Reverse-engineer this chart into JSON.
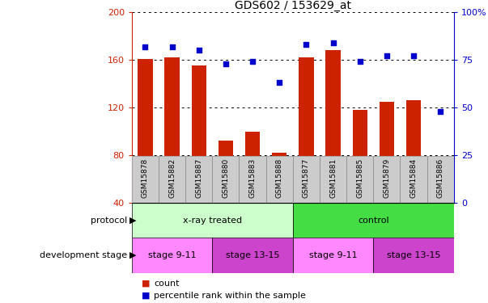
{
  "title": "GDS602 / 153629_at",
  "samples": [
    "GSM15878",
    "GSM15882",
    "GSM15887",
    "GSM15880",
    "GSM15883",
    "GSM15888",
    "GSM15877",
    "GSM15881",
    "GSM15885",
    "GSM15879",
    "GSM15884",
    "GSM15886"
  ],
  "counts": [
    161,
    162,
    155,
    92,
    100,
    82,
    162,
    168,
    118,
    125,
    126,
    40
  ],
  "percentiles": [
    82,
    82,
    80,
    73,
    74,
    63,
    83,
    84,
    74,
    77,
    77,
    48
  ],
  "ylim_left": [
    40,
    200
  ],
  "ylim_right": [
    0,
    100
  ],
  "yticks_left": [
    40,
    80,
    120,
    160,
    200
  ],
  "yticks_right": [
    0,
    25,
    50,
    75,
    100
  ],
  "bar_color": "#cc2200",
  "dot_color": "#0000cc",
  "protocol_groups": [
    {
      "label": "x-ray treated",
      "start": 0,
      "end": 6,
      "color": "#ccffcc"
    },
    {
      "label": "control",
      "start": 6,
      "end": 12,
      "color": "#44dd44"
    }
  ],
  "stage_groups": [
    {
      "label": "stage 9-11",
      "start": 0,
      "end": 3,
      "color": "#ff88ff"
    },
    {
      "label": "stage 13-15",
      "start": 3,
      "end": 6,
      "color": "#cc44cc"
    },
    {
      "label": "stage 9-11",
      "start": 6,
      "end": 9,
      "color": "#ff88ff"
    },
    {
      "label": "stage 13-15",
      "start": 9,
      "end": 12,
      "color": "#cc44cc"
    }
  ],
  "protocol_label": "protocol",
  "stage_label": "development stage",
  "legend_count_label": "count",
  "legend_pct_label": "percentile rank within the sample",
  "tick_label_fontsize": 6.5,
  "bar_width": 0.55,
  "xtick_bg_color": "#cccccc",
  "xtick_border_color": "#888888"
}
